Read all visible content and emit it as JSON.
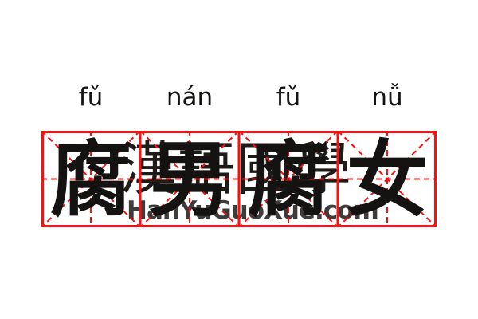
{
  "card": {
    "background": "#ffffff",
    "text_color": "#151312"
  },
  "pinyin": {
    "syllables": [
      "fǔ",
      "nán",
      "fǔ",
      "nǚ"
    ]
  },
  "word": {
    "characters": [
      "腐",
      "男",
      "腐",
      "女"
    ],
    "full_word": "腐男腐女",
    "full_pinyin": "fǔ nán fǔ nǚ"
  },
  "grid": {
    "cells": 4,
    "color": "#fa1010",
    "solid_line_width": 3,
    "dashed_line_width": 2
  },
  "watermark": {
    "cjk": "漢語國學",
    "cjk_color": "#1f1b19",
    "url": "HanYuGuoXue.com",
    "url_color": "#3f3b3a"
  }
}
